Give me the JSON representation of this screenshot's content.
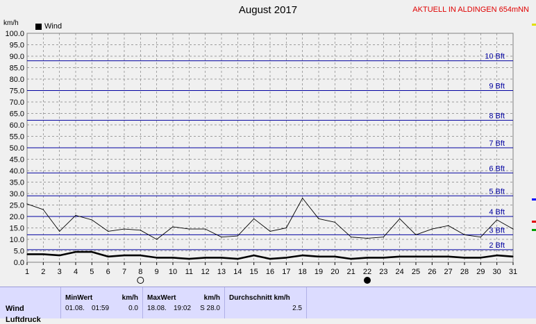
{
  "header": {
    "title": "August 2017",
    "station": "AKTUELL IN ALDINGEN 654mNN",
    "unit": "km/h",
    "legend_label": "Wind"
  },
  "chart_data": {
    "type": "line",
    "title": "August 2017",
    "ylabel": "km/h",
    "xlabel": "",
    "ylim": [
      0,
      100
    ],
    "ytick_step": 5,
    "x": [
      1,
      2,
      3,
      4,
      5,
      6,
      7,
      8,
      9,
      10,
      11,
      12,
      13,
      14,
      15,
      16,
      17,
      18,
      19,
      20,
      21,
      22,
      23,
      24,
      25,
      26,
      27,
      28,
      29,
      30,
      31
    ],
    "series": [
      {
        "name": "",
        "style": "thin",
        "color": "#000000",
        "values": [
          25.5,
          23,
          13.5,
          20.5,
          18.5,
          13.5,
          14.5,
          14,
          10,
          15.5,
          14.5,
          14.5,
          11,
          11.5,
          19,
          13.5,
          15,
          28,
          19,
          17.5,
          11,
          10.5,
          11,
          19,
          12,
          14.5,
          16,
          12,
          11,
          18.5,
          14.5
        ]
      },
      {
        "name": "Wind",
        "style": "thick",
        "color": "#000000",
        "values": [
          3.5,
          3.5,
          3,
          4.5,
          4.5,
          2.5,
          3,
          3,
          2,
          2,
          1.5,
          2,
          2,
          1.5,
          3,
          1.5,
          2,
          3,
          2.5,
          2.5,
          1.5,
          2,
          2,
          2.5,
          2.5,
          2.5,
          2.5,
          2,
          2,
          3,
          2.5
        ]
      }
    ],
    "beaufort_lines": [
      {
        "label": "2 Bft",
        "value": 5.5
      },
      {
        "label": "3 Bft",
        "value": 12
      },
      {
        "label": "4 Bft",
        "value": 20
      },
      {
        "label": "5 Bft",
        "value": 29
      },
      {
        "label": "6 Bft",
        "value": 39
      },
      {
        "label": "7 Bft",
        "value": 50
      },
      {
        "label": "8 Bft",
        "value": 62
      },
      {
        "label": "9 Bft",
        "value": 75
      },
      {
        "label": "10 Bft",
        "value": 88
      }
    ],
    "moon_phases": [
      {
        "day": 8,
        "phase": "full"
      },
      {
        "day": 22,
        "phase": "new"
      }
    ],
    "grid": true,
    "legend_position": "top-left",
    "colors": {
      "background": "#f0f0f0",
      "beaufort": "#0000a0",
      "grid": "#808080",
      "station": "#e00000",
      "table": "#dcdcff"
    }
  },
  "stats": {
    "row_label": "Wind",
    "row_label_2": "Luftdruck",
    "min": {
      "header": "MinWert",
      "unit": "km/h",
      "date": "01.08.",
      "time": "01:59",
      "value": "0.0"
    },
    "max": {
      "header": "MaxWert",
      "unit": "km/h",
      "date": "18.08.",
      "time": "19:02",
      "value": "S 28.0"
    },
    "avg": {
      "header": "Durchschnitt km/h",
      "value": "2.5"
    }
  }
}
